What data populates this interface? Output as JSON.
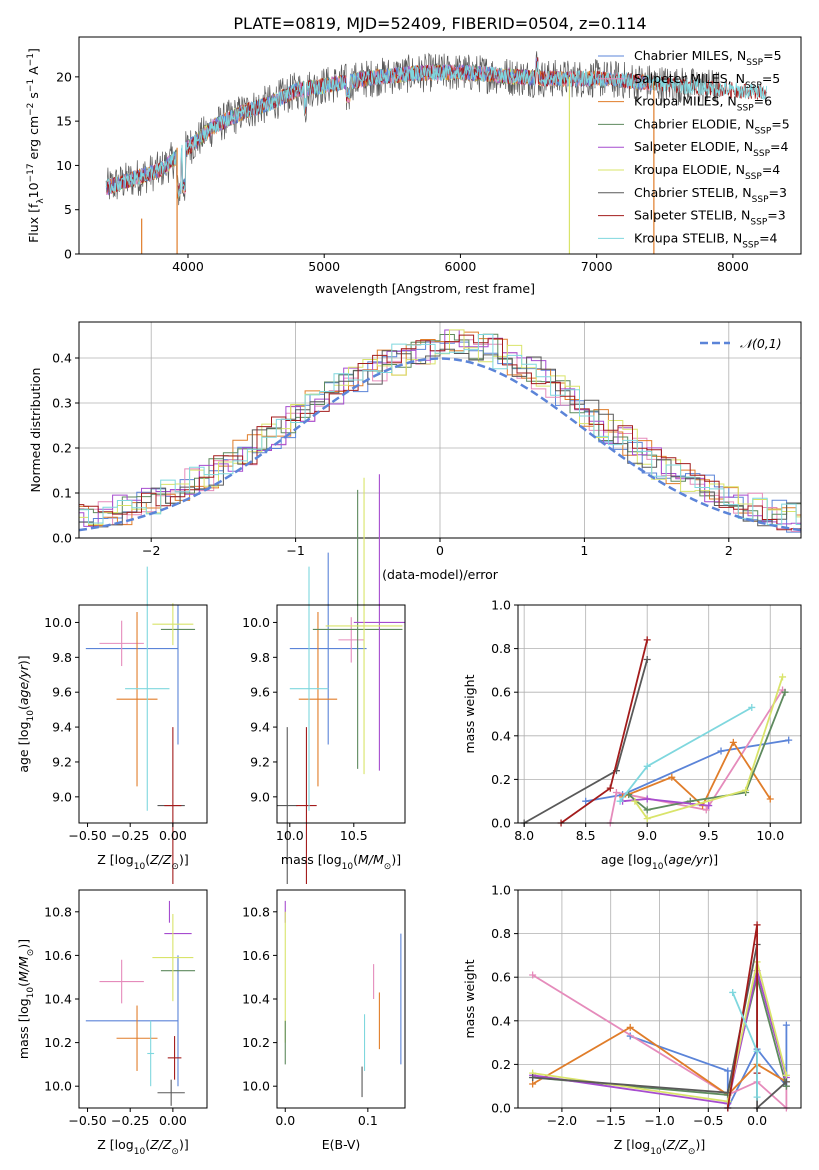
{
  "figure": {
    "title": "PLATE=0819, MJD=52409, FIBERID=0504, z=0.114",
    "colors": {
      "chabrier_miles": "#5b84d8",
      "salpeter_miles": "#e58bbb",
      "kroupa_miles": "#e07d2a",
      "chabrier_elodie": "#5e8a5e",
      "salpeter_elodie": "#a64ccf",
      "kroupa_elodie": "#d9e46a",
      "chabrier_stelib": "#595959",
      "salpeter_stelib": "#a31c1c",
      "kroupa_stelib": "#7fd7de",
      "normal_curve": "#5b84d8"
    }
  },
  "chart_data": [
    {
      "id": "spectrum",
      "type": "line",
      "title": "PLATE=0819, MJD=52409, FIBERID=0504, z=0.114",
      "xlabel": "wavelength [Angstrom, rest frame]",
      "ylabel": "Flux [fλ10⁻¹⁷ erg cm⁻² s⁻¹ A⁻¹]",
      "xlim": [
        3200,
        8500
      ],
      "ylim": [
        0,
        24.5
      ],
      "xticks": [
        4000,
        5000,
        6000,
        7000,
        8000
      ],
      "yticks": [
        0,
        5,
        10,
        15,
        20
      ],
      "grid": false,
      "legend_position": "top-right",
      "continuum": {
        "x": [
          3400,
          3600,
          3800,
          4000,
          4200,
          4400,
          4600,
          4800,
          5000,
          5200,
          5400,
          5600,
          5800,
          6000,
          6200,
          6400,
          6600,
          6800,
          7000,
          7200,
          7400,
          7600,
          7800,
          8000,
          8200
        ],
        "y": [
          7.5,
          8.5,
          9.5,
          12.0,
          14.5,
          16.0,
          17.0,
          18.5,
          19.0,
          19.5,
          20.0,
          20.3,
          20.5,
          20.5,
          20.3,
          20.0,
          19.8,
          19.8,
          19.8,
          19.6,
          19.3,
          19.0,
          18.8,
          18.5,
          18.3
        ]
      },
      "series": [
        {
          "name": "Chabrier MILES, N_SSP=5",
          "color_key": "chabrier_miles"
        },
        {
          "name": "Salpeter MILES, N_SSP=5",
          "color_key": "salpeter_miles"
        },
        {
          "name": "Kroupa MILES, N_SSP=6",
          "color_key": "kroupa_miles"
        },
        {
          "name": "Chabrier ELODIE, N_SSP=5",
          "color_key": "chabrier_elodie"
        },
        {
          "name": "Salpeter ELODIE, N_SSP=4",
          "color_key": "salpeter_elodie"
        },
        {
          "name": "Kroupa ELODIE, N_SSP=4",
          "color_key": "kroupa_elodie"
        },
        {
          "name": "Chabrier STELIB, N_SSP=3",
          "color_key": "chabrier_stelib"
        },
        {
          "name": "Salpeter STELIB, N_SSP=3",
          "color_key": "salpeter_stelib"
        },
        {
          "name": "Kroupa STELIB, N_SSP=4",
          "color_key": "kroupa_stelib"
        }
      ],
      "legend_labels": [
        {
          "text": "Chabrier MILES, N",
          "sub": "SSP",
          "tail": "=5"
        },
        {
          "text": "Salpeter MILES, N",
          "sub": "SSP",
          "tail": "=5"
        },
        {
          "text": "Kroupa MILES, N",
          "sub": "SSP",
          "tail": "=6"
        },
        {
          "text": "Chabrier ELODIE, N",
          "sub": "SSP",
          "tail": "=5"
        },
        {
          "text": "Salpeter ELODIE, N",
          "sub": "SSP",
          "tail": "=4"
        },
        {
          "text": "Kroupa ELODIE, N",
          "sub": "SSP",
          "tail": "=4"
        },
        {
          "text": "Chabrier STELIB, N",
          "sub": "SSP",
          "tail": "=3"
        },
        {
          "text": "Salpeter STELIB, N",
          "sub": "SSP",
          "tail": "=3"
        },
        {
          "text": "Kroupa STELIB, N",
          "sub": "SSP",
          "tail": "=4"
        }
      ],
      "dropouts": [
        {
          "x": 3660,
          "color_key": "kroupa_miles",
          "y_top": 4.0
        },
        {
          "x": 3920,
          "color_key": "kroupa_miles",
          "y_top": 12.0
        },
        {
          "x": 6800,
          "color_key": "kroupa_elodie",
          "y_top": 20.0
        },
        {
          "x": 7420,
          "color_key": "kroupa_miles",
          "y_top": 19.5
        }
      ]
    },
    {
      "id": "residuals",
      "type": "histogram",
      "xlabel": "(data-model)/error",
      "ylabel": "Normed distribution",
      "xlim": [
        -2.5,
        2.5
      ],
      "ylim": [
        0,
        0.48
      ],
      "xticks": [
        -2,
        -1,
        0,
        1,
        2
      ],
      "yticks": [
        0.0,
        0.1,
        0.2,
        0.3,
        0.4
      ],
      "grid": true,
      "legend_position": "top-right",
      "legend": "𝒩(0,1)",
      "normal_curve": {
        "mean": 0,
        "sigma": 1
      }
    },
    {
      "id": "z_vs_age",
      "type": "errorbar",
      "xlabel": "Z [log10(Z/Z⊙)]",
      "ylabel": "age  [log10(age/yr)]",
      "xlim": [
        -0.55,
        0.2
      ],
      "ylim": [
        8.85,
        10.1
      ],
      "xticks": [
        -0.5,
        -0.25,
        0.0
      ],
      "yticks": [
        9.0,
        9.2,
        9.4,
        9.6,
        9.8,
        10.0
      ],
      "points": [
        {
          "c": "chabrier_miles",
          "x": -0.24,
          "xe": 0.27,
          "y": 9.85,
          "ye": 0.0
        },
        {
          "c": "chabrier_miles",
          "x": 0.03,
          "xe": 0.0,
          "y": 9.7,
          "ye": 0.4
        },
        {
          "c": "salpeter_miles",
          "x": -0.3,
          "xe": 0.13,
          "y": 9.88,
          "ye": 0.13
        },
        {
          "c": "kroupa_miles",
          "x": -0.21,
          "xe": 0.12,
          "y": 9.56,
          "ye": 0.5
        },
        {
          "c": "chabrier_elodie",
          "x": 0.03,
          "xe": 0.1,
          "y": 9.96,
          "ye": 0.0
        },
        {
          "c": "kroupa_elodie",
          "x": 0.0,
          "xe": 0.12,
          "y": 9.99,
          "ye": 0.12
        },
        {
          "c": "chabrier_stelib",
          "x": -0.01,
          "xe": 0.08,
          "y": 8.95,
          "ye": 0.0
        },
        {
          "c": "salpeter_stelib",
          "x": 0.0,
          "xe": 0.05,
          "y": 8.95,
          "ye": 0.45
        },
        {
          "c": "kroupa_stelib",
          "x": -0.15,
          "xe": 0.13,
          "y": 9.62,
          "ye": 0.7
        }
      ]
    },
    {
      "id": "mass_vs_age",
      "type": "errorbar",
      "xlabel": "mass [log10(M/M⊙)]",
      "ylabel": "",
      "xlim": [
        9.9,
        10.9
      ],
      "ylim": [
        8.85,
        10.1
      ],
      "xticks": [
        10.0,
        10.5
      ],
      "yticks": [
        9.0,
        9.2,
        9.4,
        9.6,
        9.8,
        10.0
      ],
      "points": [
        {
          "c": "chabrier_miles",
          "x": 10.3,
          "xe": 0.3,
          "y": 9.85,
          "ye": 0.55
        },
        {
          "c": "salpeter_miles",
          "x": 10.48,
          "xe": 0.1,
          "y": 9.9,
          "ye": 0.13
        },
        {
          "c": "kroupa_miles",
          "x": 10.22,
          "xe": 0.15,
          "y": 9.56,
          "ye": 0.5
        },
        {
          "c": "chabrier_elodie",
          "x": 10.53,
          "xe": 0.35,
          "y": 9.96,
          "ye": 0.8
        },
        {
          "c": "salpeter_elodie",
          "x": 10.7,
          "xe": 0.2,
          "y": 10.0,
          "ye": 0.85
        },
        {
          "c": "kroupa_elodie",
          "x": 10.58,
          "xe": 0.3,
          "y": 9.98,
          "ye": 0.85
        },
        {
          "c": "chabrier_stelib",
          "x": 9.98,
          "xe": 0.08,
          "y": 8.95,
          "ye": 0.45
        },
        {
          "c": "salpeter_stelib",
          "x": 10.13,
          "xe": 0.08,
          "y": 8.95,
          "ye": 0.45
        },
        {
          "c": "kroupa_stelib",
          "x": 10.15,
          "xe": 0.15,
          "y": 9.62,
          "ye": 0.7
        }
      ]
    },
    {
      "id": "age_vs_weight",
      "type": "line",
      "xlabel": "age  [log10(age/yr)]",
      "ylabel": "mass weight",
      "xlim": [
        7.95,
        10.25
      ],
      "ylim": [
        0,
        1.0
      ],
      "xticks": [
        8.0,
        8.5,
        9.0,
        9.5,
        10.0
      ],
      "yticks": [
        0.0,
        0.2,
        0.4,
        0.6,
        0.8,
        1.0
      ],
      "grid": true,
      "series": [
        {
          "c": "chabrier_miles",
          "x": [
            8.5,
            8.8,
            9.6,
            10.15
          ],
          "y": [
            0.1,
            0.13,
            0.33,
            0.38
          ]
        },
        {
          "c": "salpeter_miles",
          "x": [
            8.7,
            8.75,
            9.48,
            10.1
          ],
          "y": [
            0.0,
            0.14,
            0.06,
            0.61
          ]
        },
        {
          "c": "kroupa_miles",
          "x": [
            8.8,
            9.2,
            9.45,
            9.7,
            10.0
          ],
          "y": [
            0.12,
            0.21,
            0.08,
            0.37,
            0.11
          ]
        },
        {
          "c": "chabrier_elodie",
          "x": [
            8.85,
            9.0,
            9.35,
            9.8,
            10.12
          ],
          "y": [
            0.13,
            0.06,
            0.1,
            0.14,
            0.6
          ]
        },
        {
          "c": "salpeter_elodie",
          "x": [
            8.8,
            9.0,
            9.5
          ],
          "y": [
            0.1,
            0.11,
            0.08
          ]
        },
        {
          "c": "kroupa_elodie",
          "x": [
            8.9,
            9.0,
            9.8,
            10.1
          ],
          "y": [
            0.1,
            0.02,
            0.15,
            0.67
          ]
        },
        {
          "c": "chabrier_stelib",
          "x": [
            8.0,
            8.75,
            9.0
          ],
          "y": [
            0.0,
            0.24,
            0.75
          ]
        },
        {
          "c": "salpeter_stelib",
          "x": [
            8.3,
            8.7,
            9.0
          ],
          "y": [
            0.0,
            0.16,
            0.84
          ]
        },
        {
          "c": "kroupa_stelib",
          "x": [
            8.78,
            9.0,
            9.85
          ],
          "y": [
            0.1,
            0.26,
            0.53
          ]
        }
      ]
    },
    {
      "id": "z_vs_mass",
      "type": "errorbar",
      "xlabel": "Z [log10(Z/Z⊙)]",
      "ylabel": "mass [log10(M/M⊙)]",
      "xlim": [
        -0.55,
        0.2
      ],
      "ylim": [
        9.9,
        10.9
      ],
      "xticks": [
        -0.5,
        -0.25,
        0.0
      ],
      "yticks": [
        10.0,
        10.2,
        10.4,
        10.6,
        10.8
      ],
      "points": [
        {
          "c": "chabrier_miles",
          "x": -0.24,
          "xe": 0.27,
          "y": 10.3,
          "ye": 0.0
        },
        {
          "c": "chabrier_miles",
          "x": 0.03,
          "xe": 0.0,
          "y": 10.3,
          "ye": 0.3
        },
        {
          "c": "salpeter_miles",
          "x": -0.3,
          "xe": 0.13,
          "y": 10.48,
          "ye": 0.1
        },
        {
          "c": "kroupa_miles",
          "x": -0.21,
          "xe": 0.12,
          "y": 10.22,
          "ye": 0.15
        },
        {
          "c": "chabrier_elodie",
          "x": 0.03,
          "xe": 0.1,
          "y": 10.53,
          "ye": 0.0
        },
        {
          "c": "salpeter_elodie",
          "x": 0.03,
          "xe": 0.08,
          "y": 10.7,
          "ye": 0.0
        },
        {
          "c": "salpeter_elodie",
          "x": -0.02,
          "xe": 0.0,
          "y": 10.8,
          "ye": 0.05
        },
        {
          "c": "kroupa_elodie",
          "x": 0.0,
          "xe": 0.12,
          "y": 10.59,
          "ye": 0.2
        },
        {
          "c": "chabrier_stelib",
          "x": -0.01,
          "xe": 0.08,
          "y": 9.97,
          "ye": 0.06
        },
        {
          "c": "salpeter_stelib",
          "x": 0.01,
          "xe": 0.04,
          "y": 10.13,
          "ye": 0.1
        },
        {
          "c": "kroupa_stelib",
          "x": -0.13,
          "xe": 0.02,
          "y": 10.15,
          "ye": 0.15
        }
      ]
    },
    {
      "id": "ebv_vs_mass",
      "type": "errorbar",
      "xlabel": "E(B-V)",
      "ylabel": "",
      "xlim": [
        -0.01,
        0.145
      ],
      "ylim": [
        9.9,
        10.9
      ],
      "xticks": [
        0.0,
        0.1
      ],
      "yticks": [
        10.0,
        10.2,
        10.4,
        10.6,
        10.8
      ],
      "points": [
        {
          "c": "salpeter_elodie",
          "x": 0.0,
          "xe": 0.0,
          "y": 10.8,
          "ye": 0.05
        },
        {
          "c": "kroupa_elodie",
          "x": 0.0,
          "xe": 0.0,
          "y": 10.5,
          "ye": 0.3
        },
        {
          "c": "chabrier_elodie",
          "x": 0.0,
          "xe": 0.0,
          "y": 10.2,
          "ye": 0.1
        },
        {
          "c": "chabrier_stelib",
          "x": 0.093,
          "xe": 0.0,
          "y": 10.02,
          "ye": 0.07
        },
        {
          "c": "kroupa_stelib",
          "x": 0.096,
          "xe": 0.0,
          "y": 10.2,
          "ye": 0.13
        },
        {
          "c": "salpeter_miles",
          "x": 0.107,
          "xe": 0.0,
          "y": 10.48,
          "ye": 0.08
        },
        {
          "c": "kroupa_miles",
          "x": 0.114,
          "xe": 0.0,
          "y": 10.3,
          "ye": 0.13
        },
        {
          "c": "chabrier_miles",
          "x": 0.14,
          "xe": 0.0,
          "y": 10.4,
          "ye": 0.3
        }
      ]
    },
    {
      "id": "z_vs_weight",
      "type": "line",
      "xlabel": "Z [log10(Z/Z⊙)]",
      "ylabel": "mass weight",
      "xlim": [
        -2.45,
        0.45
      ],
      "ylim": [
        0,
        1.0
      ],
      "xticks": [
        -2.0,
        -1.5,
        -1.0,
        -0.5,
        0.0
      ],
      "yticks": [
        0.0,
        0.2,
        0.4,
        0.6,
        0.8,
        1.0
      ],
      "grid": true,
      "series": [
        {
          "c": "chabrier_miles",
          "x": [
            -1.3,
            -0.3,
            -0.3,
            0.0,
            0.3,
            0.3
          ],
          "y": [
            0.33,
            0.17,
            0.0,
            0.27,
            0.1,
            0.38
          ]
        },
        {
          "c": "salpeter_miles",
          "x": [
            -2.3,
            -0.3,
            0.0,
            0.3,
            0.3
          ],
          "y": [
            0.61,
            0.06,
            0.12,
            0.0,
            0.1
          ]
        },
        {
          "c": "kroupa_miles",
          "x": [
            -2.3,
            -1.3,
            -0.3,
            0.0,
            0.3
          ],
          "y": [
            0.11,
            0.37,
            0.06,
            0.2,
            0.12
          ]
        },
        {
          "c": "chabrier_elodie",
          "x": [
            -2.3,
            -0.3,
            0.0,
            0.3
          ],
          "y": [
            0.14,
            0.06,
            0.6,
            0.1
          ]
        },
        {
          "c": "salpeter_elodie",
          "x": [
            -2.3,
            -0.3,
            0.0,
            0.3
          ],
          "y": [
            0.15,
            0.02,
            0.63,
            0.14
          ]
        },
        {
          "c": "kroupa_elodie",
          "x": [
            -2.3,
            -0.3,
            0.0,
            0.3
          ],
          "y": [
            0.16,
            0.03,
            0.67,
            0.15
          ]
        },
        {
          "c": "chabrier_stelib",
          "x": [
            -2.3,
            -0.3,
            0.0,
            0.0,
            0.3
          ],
          "y": [
            0.14,
            0.07,
            0.75,
            0.0,
            0.12
          ]
        },
        {
          "c": "salpeter_stelib",
          "x": [
            -0.3,
            0.0,
            0.0
          ],
          "y": [
            0.0,
            0.84,
            0.16
          ]
        },
        {
          "c": "kroupa_stelib",
          "x": [
            -0.25,
            0.0,
            0.0
          ],
          "y": [
            0.53,
            0.26,
            0.05
          ]
        }
      ]
    }
  ]
}
